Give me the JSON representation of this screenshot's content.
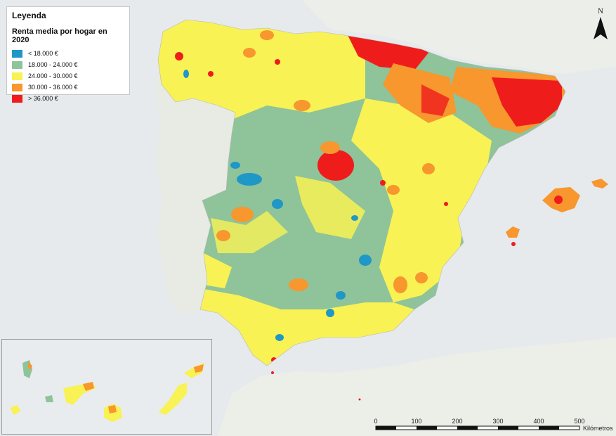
{
  "legend": {
    "title": "Leyenda",
    "subtitle": "Renta media por hogar en 2020",
    "classes": [
      {
        "label": "< 18.000 €",
        "color": "#1f97c7"
      },
      {
        "label": "18.000 - 24.000 €",
        "color": "#8fc39a"
      },
      {
        "label": "24.000 - 30.000 €",
        "color": "#f8f254"
      },
      {
        "label": "30.000 - 36.000 €",
        "color": "#f7972e"
      },
      {
        "label": "> 36.000 €",
        "color": "#ef1c1c"
      }
    ]
  },
  "north_arrow": {
    "label": "N"
  },
  "scale_bar": {
    "ticks": [
      "0",
      "100",
      "200",
      "300",
      "400",
      "500"
    ],
    "unit": "Kilómetros"
  }
}
